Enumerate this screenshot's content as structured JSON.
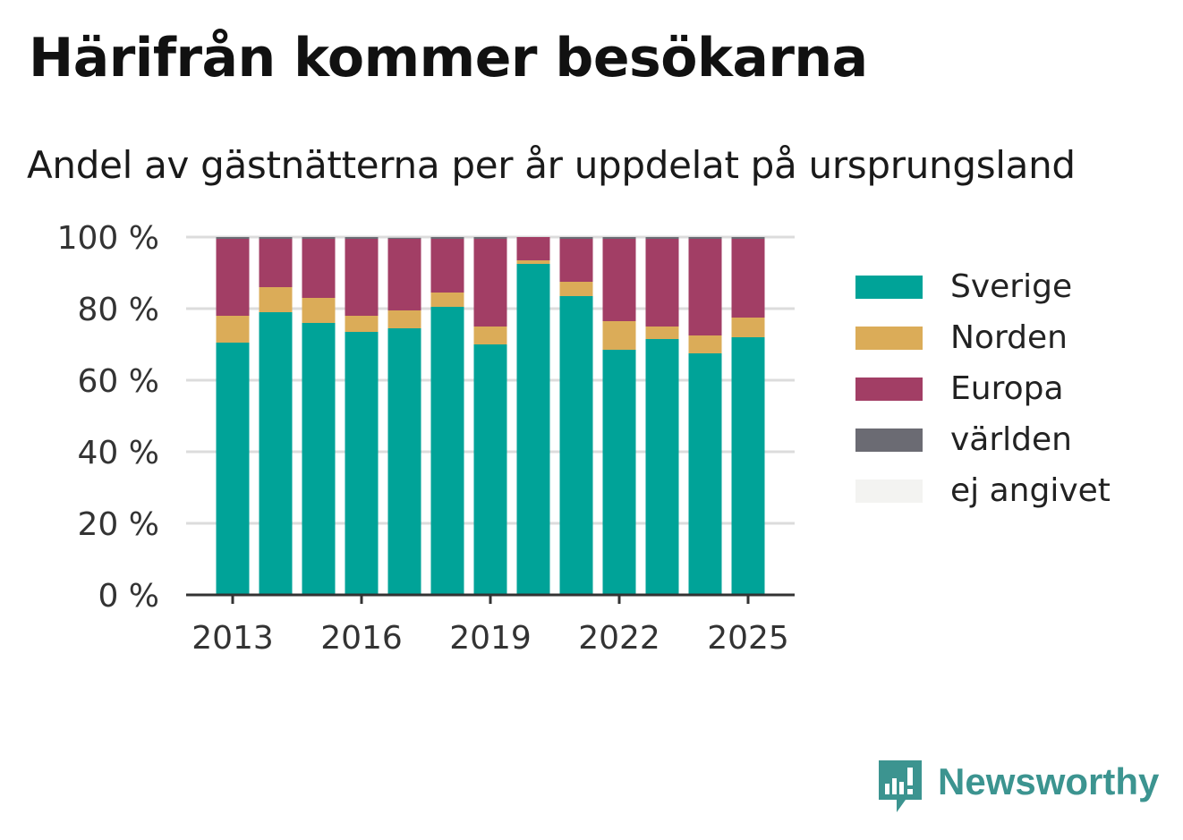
{
  "title": "Härifrån kommer besökarna",
  "subtitle": "Andel av gästnätterna per år uppdelat på ursprungsland",
  "brand": {
    "name": "Newsworthy",
    "icon": "newsworthy-logo-icon"
  },
  "colors": {
    "Sverige": "#00a398",
    "Norden": "#dbac58",
    "Europa": "#a23e65",
    "världen": "#6b6b73",
    "ej angivet": "#f3f3f1",
    "grid": "#dcdcdc",
    "axis": "#333333"
  },
  "chart_data": {
    "type": "bar",
    "stacked": true,
    "categories": [
      "2013",
      "2014",
      "2015",
      "2016",
      "2017",
      "2018",
      "2019",
      "2020",
      "2021",
      "2022",
      "2023",
      "2024",
      "2025"
    ],
    "x_tick_labels": [
      "2013",
      "2016",
      "2019",
      "2022",
      "2025"
    ],
    "y_tick_labels": [
      "0 %",
      "20 %",
      "40 %",
      "60 %",
      "80 %",
      "100 %"
    ],
    "ylim": [
      0,
      100
    ],
    "grid": true,
    "legend_position": "right",
    "series": [
      {
        "name": "Sverige",
        "values": [
          70.5,
          79,
          76,
          73.5,
          74.5,
          80.5,
          70,
          92.5,
          83.5,
          68.5,
          71.5,
          67.5,
          72
        ]
      },
      {
        "name": "Norden",
        "values": [
          7.5,
          7,
          7,
          4.5,
          5,
          4,
          5,
          1,
          4,
          8,
          3.5,
          5,
          5.5
        ]
      },
      {
        "name": "Europa",
        "values": [
          21.5,
          13.5,
          16.5,
          21.5,
          20,
          15,
          24.5,
          6.5,
          12,
          23,
          24.5,
          27,
          22
        ]
      },
      {
        "name": "världen",
        "values": [
          0.5,
          0.5,
          0.5,
          0.5,
          0.3,
          0.5,
          0.5,
          0,
          0.5,
          0.5,
          0.5,
          0.5,
          0.5
        ]
      },
      {
        "name": "ej angivet",
        "values": [
          0,
          0,
          0,
          0,
          0,
          0,
          0,
          0,
          0,
          0,
          0,
          0,
          0
        ]
      }
    ]
  }
}
